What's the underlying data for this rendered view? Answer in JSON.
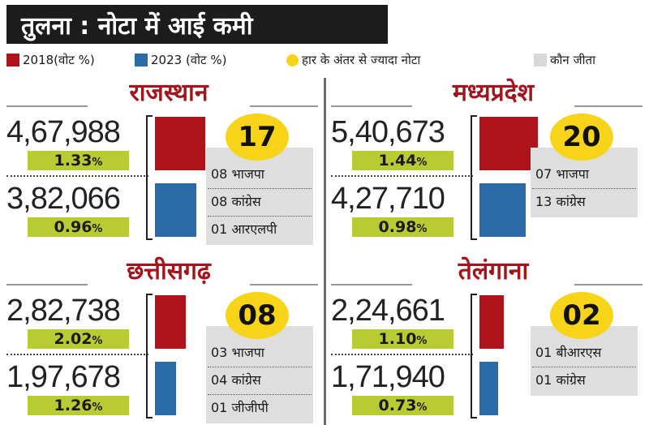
{
  "title": "तुलना : नोटा में आई कमी",
  "legend": {
    "items": [
      {
        "label": "2018(वोट %)",
        "color": "#b0141b",
        "type": "square"
      },
      {
        "label": "2023  (वोट %)",
        "color": "#2a6aa6",
        "type": "square"
      },
      {
        "label": "हार के अंतर से ज्यादा नोटा",
        "color": "#f7d417",
        "type": "dot"
      },
      {
        "label": "कौन जीता",
        "color": "#d9d9d9",
        "type": "square"
      }
    ]
  },
  "chart_data": [
    {
      "type": "bar",
      "state": "राजस्थान",
      "series": [
        {
          "year": "2018",
          "votes": 467988,
          "votes_label": "4,67,988",
          "percent": "1.33",
          "color": "#b0141b"
        },
        {
          "year": "2023",
          "votes": 382066,
          "votes_label": "3,82,066",
          "percent": "0.96",
          "color": "#2a6aa6"
        }
      ],
      "nota_exceeded_margin_seats": "17",
      "winners": [
        "08 भाजपा",
        "08 कांग्रेस",
        "01 आरएलपी"
      ]
    },
    {
      "type": "bar",
      "state": "मध्यप्रदेश",
      "series": [
        {
          "year": "2018",
          "votes": 540673,
          "votes_label": "5,40,673",
          "percent": "1.44",
          "color": "#b0141b"
        },
        {
          "year": "2023",
          "votes": 427710,
          "votes_label": "4,27,710",
          "percent": "0.98",
          "color": "#2a6aa6"
        }
      ],
      "nota_exceeded_margin_seats": "20",
      "winners": [
        "07 भाजपा",
        "13 कांग्रेस"
      ]
    },
    {
      "type": "bar",
      "state": "छत्तीसगढ़",
      "series": [
        {
          "year": "2018",
          "votes": 282738,
          "votes_label": "2,82,738",
          "percent": "2.02",
          "color": "#b0141b"
        },
        {
          "year": "2023",
          "votes": 197678,
          "votes_label": "1,97,678",
          "percent": "1.26",
          "color": "#2a6aa6"
        }
      ],
      "nota_exceeded_margin_seats": "08",
      "winners": [
        "03 भाजपा",
        "04 कांग्रेस",
        "01 जीजीपी"
      ]
    },
    {
      "type": "bar",
      "state": "तेलंगाना",
      "series": [
        {
          "year": "2018",
          "votes": 224661,
          "votes_label": "2,24,661",
          "percent": "1.10",
          "color": "#b0141b"
        },
        {
          "year": "2023",
          "votes": 171940,
          "votes_label": "1,71,940",
          "percent": "0.73",
          "color": "#2a6aa6"
        }
      ],
      "nota_exceeded_margin_seats": "02",
      "winners": [
        "01 बीआरएस",
        "01 कांग्रेस"
      ]
    }
  ],
  "percent_sign": "%"
}
